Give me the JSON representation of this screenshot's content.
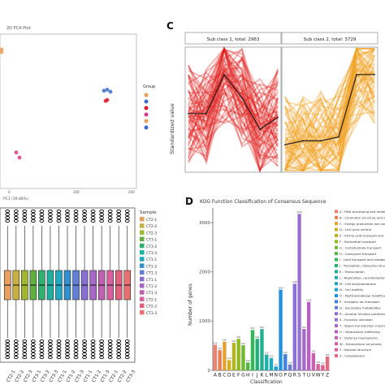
{
  "panel_letters": {
    "c": "C",
    "d": "D"
  },
  "pca": {
    "title": "2D PCA Plot",
    "xlabel": "PC1 (39.88%)",
    "xticks": [
      "0",
      "100",
      "200"
    ],
    "legend_title": "Group"
  },
  "boxplot": {
    "legend_title": "Sample"
  },
  "trend": {
    "ylabel": "Standardized value",
    "panels": [
      {
        "title": "Sub class 1, total: 2963",
        "color": "#e0201c"
      },
      {
        "title": "Sub class 2, total: 3729",
        "color": "#f0a020"
      }
    ]
  },
  "chart_data": [
    {
      "type": "scatter",
      "title": "2D PCA Plot",
      "xlabel": "PC1 (39.88%)",
      "ylabel": "",
      "xlim": [
        -200,
        220
      ],
      "series": [
        {
          "color": "#e8a060",
          "points": [
            [
              -210,
              120
            ],
            [
              -200,
              115
            ]
          ]
        },
        {
          "color": "#3a6fc8",
          "points": [
            [
              120,
              40
            ],
            [
              130,
              42
            ],
            [
              140,
              38
            ]
          ]
        },
        {
          "color": "#d81b2b",
          "points": [
            [
              125,
              20
            ],
            [
              130,
              22
            ]
          ]
        },
        {
          "color": "#d83a8a",
          "points": [
            [
              -150,
              -80
            ],
            [
              -140,
              -90
            ]
          ]
        }
      ]
    },
    {
      "type": "box",
      "categories": [
        "CT2-1",
        "CT2-2",
        "CT2-3",
        "CT3-1",
        "CT3-2",
        "CT3-3",
        "CT1-1",
        "CT1-2",
        "CT1-3",
        "CT1-1",
        "CT1-2",
        "CT1-3",
        "CT2-1",
        "CT2-2",
        "CT3-3"
      ],
      "colors": [
        "#e8a060",
        "#c8b040",
        "#a0b830",
        "#60b040",
        "#30b070",
        "#20b0a0",
        "#20a8c0",
        "#3090d0",
        "#6080d8",
        "#8870d0",
        "#a868c8",
        "#c060b0",
        "#d860a0",
        "#e06080",
        "#e87070"
      ],
      "median": 0,
      "q1": -2,
      "q3": 2
    },
    {
      "type": "line",
      "series": [
        {
          "values": [
            -0.1,
            -0.1,
            0.9,
            0.3,
            -0.5,
            -0.2
          ]
        },
        {
          "values": [
            -0.9,
            -0.8,
            -0.8,
            -0.7,
            0.9,
            0.9
          ]
        }
      ]
    },
    {
      "type": "bar",
      "title": "KOG Function Classification of Consensus Sequence",
      "xlabel": "Classification",
      "ylabel": "Number of genes",
      "ylim": [
        0,
        3300
      ],
      "yticks": [
        "0",
        "1000",
        "2000",
        "3000"
      ],
      "categories": [
        "A",
        "B",
        "C",
        "D",
        "E",
        "F",
        "G",
        "H",
        "I",
        "J",
        "K",
        "L",
        "M",
        "N",
        "O",
        "P",
        "Q",
        "R",
        "S",
        "T",
        "U",
        "V",
        "W",
        "Y",
        "Z"
      ],
      "values": [
        520,
        410,
        580,
        210,
        560,
        640,
        510,
        160,
        820,
        640,
        840,
        320,
        250,
        80,
        1640,
        330,
        120,
        1760,
        3180,
        840,
        1390,
        350,
        130,
        110,
        280
      ],
      "colors": [
        "#f08070",
        "#e87c50",
        "#e4a030",
        "#d0b020",
        "#b4b420",
        "#90b820",
        "#70b830",
        "#50b840",
        "#30b858",
        "#20b078",
        "#20b090",
        "#20b0a8",
        "#20a8c0",
        "#20a0d0",
        "#2090e0",
        "#4080e0",
        "#6878d8",
        "#8870d8",
        "#9870d0",
        "#a868c8",
        "#b860c0",
        "#c860b0",
        "#d860a0",
        "#e06090",
        "#e86880"
      ],
      "legend": [
        "A : RNA processing and modification",
        "B : Chromatin structure and dynamics",
        "C : Energy production and conversion",
        "D : Cell cycle control",
        "E : Amino acid transport and metabolism",
        "F : Nucleotide transport",
        "G : Carbohydrate transport",
        "H : Coenzyme transport",
        "I : Lipid transport and metabolism",
        "J : Translation, ribosomal structure",
        "K : Transcription",
        "L : Replication, recombination",
        "M : Cell wall/membrane",
        "N : Cell motility",
        "O : Posttranslational modification",
        "P : Inorganic ion transport",
        "Q : Secondary metabolites",
        "R : General function prediction only",
        "S : Function unknown",
        "T : Signal transduction mechanisms",
        "U : Intracellular trafficking",
        "V : Defense mechanisms",
        "W : Extracellular structures",
        "Y : Nuclear structure",
        "Z : Cytoskeleton"
      ]
    }
  ]
}
